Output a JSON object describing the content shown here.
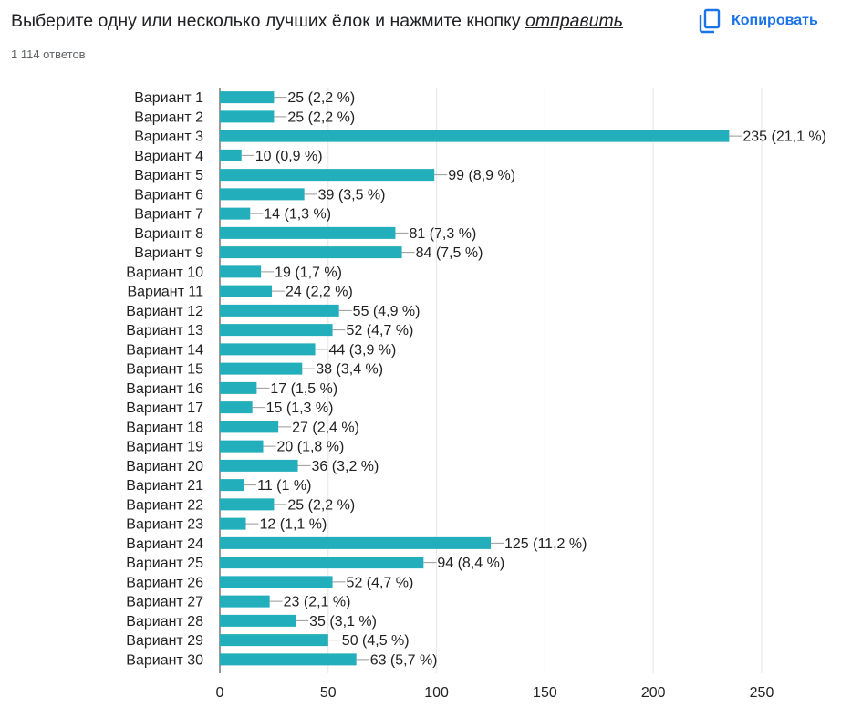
{
  "question": {
    "title_main": "Выберите одну или несколько лучших ёлок и нажмите кнопку ",
    "title_link": "отправить",
    "responses": "1 114 ответов"
  },
  "toolbar": {
    "copy_label": "Копировать",
    "copy_icon": "copy-icon"
  },
  "colors": {
    "bar": "#22aebb",
    "grid": "#e6e6e6",
    "axis": "#333333",
    "text": "#222222",
    "accent": "#1a73e8"
  },
  "chart_data": {
    "type": "bar",
    "orientation": "horizontal",
    "xlim": [
      0,
      250
    ],
    "x_ticks": [
      0,
      50,
      100,
      150,
      200,
      250
    ],
    "grid": true,
    "categories": [
      "Вариант 1",
      "Вариант 2",
      "Вариант 3",
      "Вариант 4",
      "Вариант 5",
      "Вариант 6",
      "Вариант 7",
      "Вариант 8",
      "Вариант 9",
      "Вариант 10",
      "Вариант 11",
      "Вариант 12",
      "Вариант 13",
      "Вариант 14",
      "Вариант 15",
      "Вариант 16",
      "Вариант 17",
      "Вариант 18",
      "Вариант 19",
      "Вариант 20",
      "Вариант 21",
      "Вариант 22",
      "Вариант 23",
      "Вариант 24",
      "Вариант 25",
      "Вариант 26",
      "Вариант 27",
      "Вариант 28",
      "Вариант 29",
      "Вариант 30"
    ],
    "values": [
      25,
      25,
      235,
      10,
      99,
      39,
      14,
      81,
      84,
      19,
      24,
      55,
      52,
      44,
      38,
      17,
      15,
      27,
      20,
      36,
      11,
      25,
      12,
      125,
      94,
      52,
      23,
      35,
      50,
      63
    ],
    "data_labels": [
      "25 (2,2 %)",
      "25 (2,2 %)",
      "235 (21,1 %)",
      "10 (0,9 %)",
      "99 (8,9 %)",
      "39 (3,5 %)",
      "14 (1,3 %)",
      "81 (7,3 %)",
      "84 (7,5 %)",
      "19 (1,7 %)",
      "24 (2,2 %)",
      "55 (4,9 %)",
      "52 (4,7 %)",
      "44 (3,9 %)",
      "38 (3,4 %)",
      "17 (1,5 %)",
      "15 (1,3 %)",
      "27 (2,4 %)",
      "20 (1,8 %)",
      "36 (3,2 %)",
      "11 (1 %)",
      "25 (2,2 %)",
      "12 (1,1 %)",
      "125 (11,2 %)",
      "94 (8,4 %)",
      "52 (4,7 %)",
      "23 (2,1 %)",
      "35 (3,1 %)",
      "50 (4,5 %)",
      "63 (5,7 %)"
    ]
  }
}
